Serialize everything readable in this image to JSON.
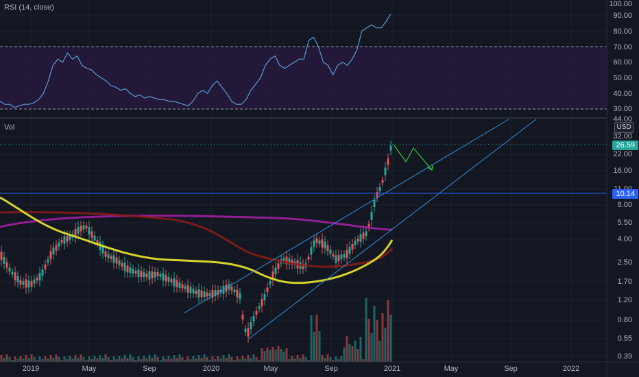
{
  "rsi": {
    "label": "RSI (14, close)",
    "axis_ticks": [
      "100.00",
      "90.00",
      "80.00",
      "70.00",
      "60.00",
      "50.00",
      "40.00",
      "30.00"
    ],
    "series": [
      35,
      33,
      33,
      31,
      32,
      33,
      33,
      34,
      36,
      40,
      48,
      58,
      62,
      60,
      66,
      62,
      64,
      58,
      56,
      55,
      52,
      50,
      48,
      45,
      44,
      42,
      43,
      40,
      38,
      39,
      37,
      38,
      37,
      36,
      36,
      35,
      35,
      34,
      33,
      32,
      35,
      40,
      42,
      40,
      45,
      48,
      44,
      40,
      35,
      33,
      33,
      36,
      42,
      46,
      50,
      58,
      62,
      64,
      58,
      56,
      58,
      60,
      62,
      62,
      74,
      76,
      70,
      60,
      58,
      52,
      58,
      60,
      58,
      62,
      68,
      80,
      82,
      84,
      82,
      82,
      86,
      91
    ],
    "overbought": 70,
    "oversold": 30,
    "colors": {
      "line": "#5b9bd5",
      "band": "#2a1a40",
      "level": "#787b86"
    }
  },
  "price": {
    "label": "Vol",
    "currency": "USD",
    "axis_ticks": [
      "44.00",
      "32.00",
      "22.00",
      "16.00",
      "11.00",
      "8.00",
      "5.50",
      "4.00",
      "2.50",
      "1.70",
      "1.20",
      "0.80",
      "0.55",
      "0.39"
    ],
    "last_price": "26.59",
    "last_price_color": "#26a69a",
    "level_price": "10.14",
    "level_color": "#2962ff"
  },
  "xaxis": {
    "labels": [
      "2019",
      "May",
      "Sep",
      "2020",
      "May",
      "Sep",
      "2021",
      "May",
      "Sep",
      "2022"
    ]
  },
  "colors": {
    "bg": "#131722",
    "grid": "#1e222d",
    "up": "#26a69a",
    "down": "#ef5350",
    "ma_fast": "#d4d42a",
    "ma_mid": "#8b1a1a",
    "ma_slow": "#a020a0",
    "channel": "#2f8fe0",
    "projection": "#2ecc40"
  }
}
